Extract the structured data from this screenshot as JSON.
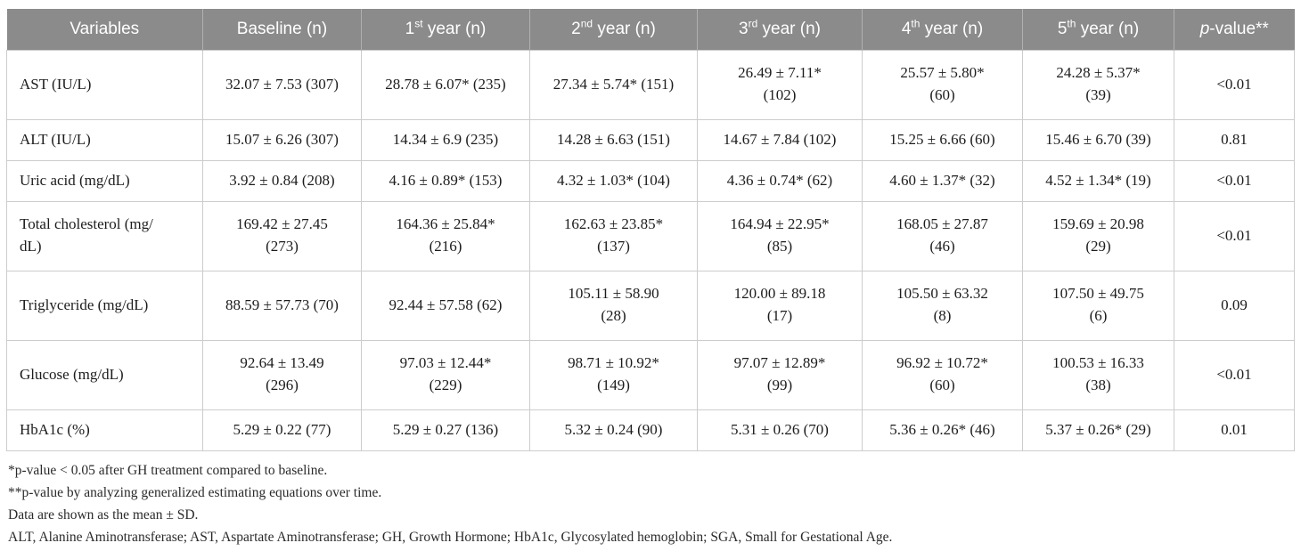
{
  "table": {
    "columns": [
      {
        "name": "variables",
        "segments": [
          {
            "t": "Variables"
          }
        ]
      },
      {
        "name": "baseline",
        "segments": [
          {
            "t": "Baseline (n)"
          }
        ]
      },
      {
        "name": "year-1",
        "segments": [
          {
            "t": "1"
          },
          {
            "t": "st",
            "sup": true
          },
          {
            "t": " year (n)"
          }
        ]
      },
      {
        "name": "year-2",
        "segments": [
          {
            "t": "2"
          },
          {
            "t": "nd",
            "sup": true
          },
          {
            "t": " year (n)"
          }
        ]
      },
      {
        "name": "year-3",
        "segments": [
          {
            "t": "3"
          },
          {
            "t": "rd",
            "sup": true
          },
          {
            "t": " year (n)"
          }
        ]
      },
      {
        "name": "year-4",
        "segments": [
          {
            "t": "4"
          },
          {
            "t": "th",
            "sup": true
          },
          {
            "t": " year (n)"
          }
        ]
      },
      {
        "name": "year-5",
        "segments": [
          {
            "t": "5"
          },
          {
            "t": "th",
            "sup": true
          },
          {
            "t": " year (n)"
          }
        ]
      },
      {
        "name": "p-value",
        "segments": [
          {
            "t": "p",
            "italic": true
          },
          {
            "t": "-value**"
          }
        ]
      }
    ],
    "rows": [
      {
        "variable": "AST (IU/L)",
        "cells": [
          "32.07 ± 7.53 (307)",
          "28.78 ± 6.07* (235)",
          "27.34 ± 5.74* (151)",
          "26.49 ± 7.11*\n(102)",
          "25.57 ± 5.80*\n(60)",
          "24.28 ± 5.37*\n(39)",
          "<0.01"
        ]
      },
      {
        "variable": "ALT (IU/L)",
        "cells": [
          "15.07 ± 6.26 (307)",
          "14.34 ± 6.9 (235)",
          "14.28 ± 6.63 (151)",
          "14.67 ± 7.84 (102)",
          "15.25 ± 6.66 (60)",
          "15.46 ± 6.70 (39)",
          "0.81"
        ]
      },
      {
        "variable": "Uric acid (mg/dL)",
        "cells": [
          "3.92 ± 0.84 (208)",
          "4.16 ± 0.89* (153)",
          "4.32 ± 1.03* (104)",
          "4.36 ± 0.74* (62)",
          "4.60 ± 1.37* (32)",
          "4.52 ± 1.34* (19)",
          "<0.01"
        ]
      },
      {
        "variable": "Total cholesterol (mg/\ndL)",
        "cells": [
          "169.42 ± 27.45\n(273)",
          "164.36 ± 25.84*\n(216)",
          "162.63 ± 23.85*\n(137)",
          "164.94 ± 22.95*\n(85)",
          "168.05 ± 27.87\n(46)",
          "159.69 ± 20.98\n(29)",
          "<0.01"
        ]
      },
      {
        "variable": "Triglyceride (mg/dL)",
        "cells": [
          "88.59 ± 57.73 (70)",
          "92.44 ± 57.58 (62)",
          "105.11 ± 58.90\n(28)",
          "120.00 ± 89.18\n(17)",
          "105.50 ± 63.32\n(8)",
          "107.50 ± 49.75\n(6)",
          "0.09"
        ]
      },
      {
        "variable": "Glucose (mg/dL)",
        "cells": [
          "92.64 ± 13.49\n(296)",
          "97.03 ± 12.44*\n(229)",
          "98.71 ± 10.92*\n(149)",
          "97.07 ± 12.89*\n(99)",
          "96.92 ± 10.72*\n(60)",
          "100.53 ± 16.33\n(38)",
          "<0.01"
        ]
      },
      {
        "variable": "HbA1c (%)",
        "cells": [
          "5.29 ± 0.22 (77)",
          "5.29 ± 0.27 (136)",
          "5.32 ± 0.24 (90)",
          "5.31 ± 0.26 (70)",
          "5.36 ± 0.26* (46)",
          "5.37 ± 0.26* (29)",
          "0.01"
        ]
      }
    ]
  },
  "footnotes": [
    "*p-value < 0.05 after GH treatment compared to baseline.",
    "**p-value by analyzing generalized estimating equations over time.",
    "Data are shown as the mean ± SD.",
    "ALT, Alanine Aminotransferase; AST, Aspartate Aminotransferase; GH, Growth Hormone; HbA1c, Glycosylated hemoglobin; SGA, Small for Gestational Age."
  ],
  "colors": {
    "header_background": "#8b8b8b",
    "header_text": "#ffffff",
    "grid_line": "#cccccc",
    "body_text": "#1c1c1c"
  }
}
